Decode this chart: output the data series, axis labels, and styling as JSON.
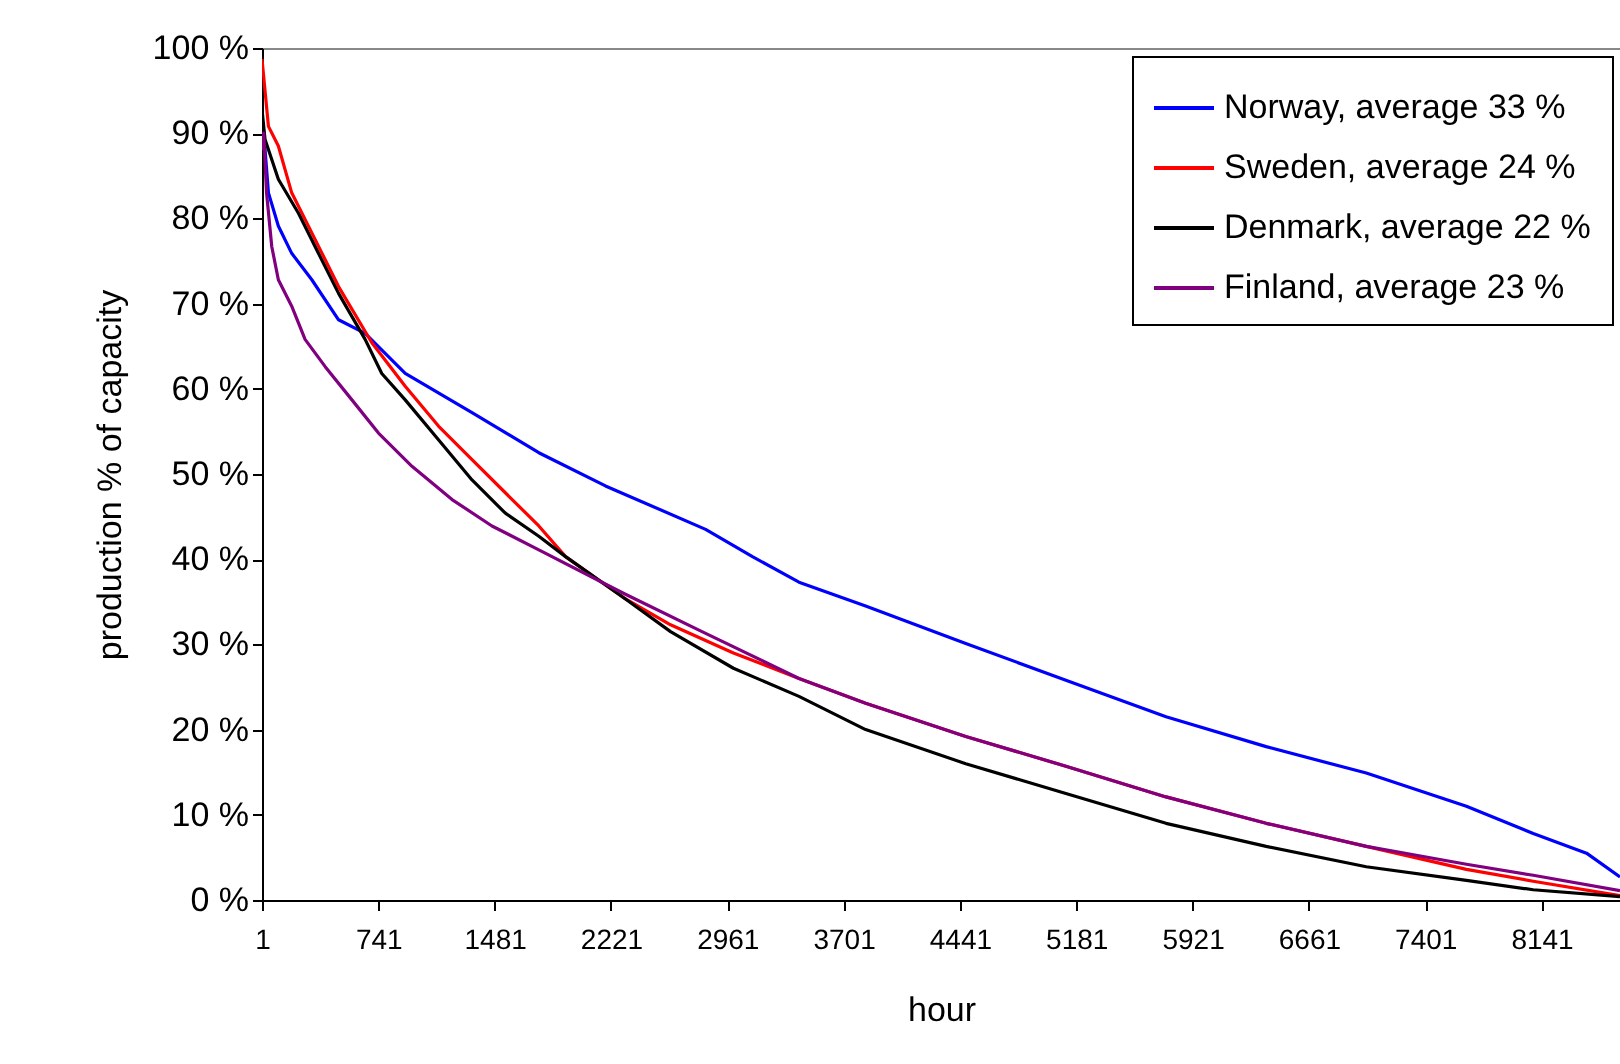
{
  "chart_data": {
    "type": "line",
    "xlabel": "hour",
    "ylabel": "production % of capacity",
    "xlim": [
      1,
      8640
    ],
    "xticks": [
      1,
      741,
      1481,
      2221,
      2961,
      3701,
      4441,
      5181,
      5921,
      6661,
      7401,
      8141
    ],
    "ylim": [
      0,
      100
    ],
    "yticks": [
      {
        "value": 0,
        "label": "0 %"
      },
      {
        "value": 10,
        "label": "10 %"
      },
      {
        "value": 20,
        "label": "20 %"
      },
      {
        "value": 30,
        "label": "30 %"
      },
      {
        "value": 40,
        "label": "40 %"
      },
      {
        "value": 50,
        "label": "50 %"
      },
      {
        "value": 60,
        "label": "60 %"
      },
      {
        "value": 70,
        "label": "70 %"
      },
      {
        "value": 80,
        "label": "80 %"
      },
      {
        "value": 90,
        "label": "90 %"
      },
      {
        "value": 100,
        "label": "100 %"
      }
    ],
    "grid": false,
    "legend": "top right",
    "marker": "none",
    "line_style": "solid",
    "series": [
      {
        "name": "Norway, average 33 %",
        "color": "#0000ff",
        "x": [
          12,
          42,
          105,
          190,
          318,
          488,
          657,
          912,
          1337,
          1762,
          2186,
          2823,
          3121,
          3417,
          3841,
          4478,
          5115,
          5752,
          6389,
          7026,
          7663,
          8088,
          8427,
          8640
        ],
        "values": [
          90,
          83,
          79.1,
          75.9,
          72.8,
          68.1,
          66.5,
          61.8,
          57.2,
          52.5,
          48.6,
          43.5,
          40.3,
          37.3,
          34.5,
          30.1,
          25.8,
          21.5,
          18,
          14.9,
          11,
          7.8,
          5.5,
          2.7
        ]
      },
      {
        "name": "Sweden, average 24 %",
        "color": "#ff0000",
        "x": [
          1,
          42,
          105,
          190,
          318,
          488,
          700,
          912,
          1125,
          1337,
          1549,
          1762,
          1932,
          2300,
          2600,
          3000,
          3417,
          3841,
          4478,
          5115,
          5752,
          6389,
          7026,
          7663,
          8088,
          8640
        ],
        "values": [
          98.7,
          90.8,
          88.5,
          83,
          78.3,
          72,
          65.4,
          60.3,
          55.6,
          51.7,
          47.8,
          43.9,
          40.3,
          35.5,
          32.3,
          29,
          26,
          23.1,
          19.2,
          15.7,
          12.1,
          9,
          6.3,
          3.6,
          2.2,
          0.5
        ]
      },
      {
        "name": "Denmark, average 22 %",
        "color": "#000000",
        "x": [
          1,
          20,
          105,
          233,
          360,
          488,
          657,
          763,
          912,
          1125,
          1337,
          1549,
          1762,
          1932,
          2300,
          2600,
          3000,
          3417,
          3841,
          4478,
          5115,
          5752,
          6389,
          7026,
          7663,
          8088,
          8640
        ],
        "values": [
          92.8,
          89.3,
          84.6,
          80.6,
          75.9,
          71.2,
          65.8,
          61.8,
          58.7,
          54,
          49.3,
          45.4,
          42.7,
          40.3,
          35.5,
          31.5,
          27.2,
          23.9,
          20,
          16,
          12.5,
          9,
          6.3,
          3.9,
          2.3,
          1.2,
          0.4
        ]
      },
      {
        "name": "Finland, average 23 %",
        "color": "#800080",
        "x": [
          1,
          12,
          30,
          63,
          105,
          190,
          275,
          403,
          573,
          742,
          955,
          1210,
          1464,
          1762,
          2300,
          2800,
          3417,
          3841,
          4478,
          5115,
          5752,
          6389,
          7026,
          7663,
          8088,
          8640
        ],
        "values": [
          88,
          90,
          83,
          76.7,
          72.8,
          69.7,
          65.8,
          62.6,
          58.7,
          54.8,
          50.9,
          47,
          43.9,
          41.1,
          36,
          31.5,
          26,
          23.1,
          19.2,
          15.7,
          12.1,
          9,
          6.3,
          4.2,
          2.9,
          1.1
        ]
      }
    ]
  }
}
